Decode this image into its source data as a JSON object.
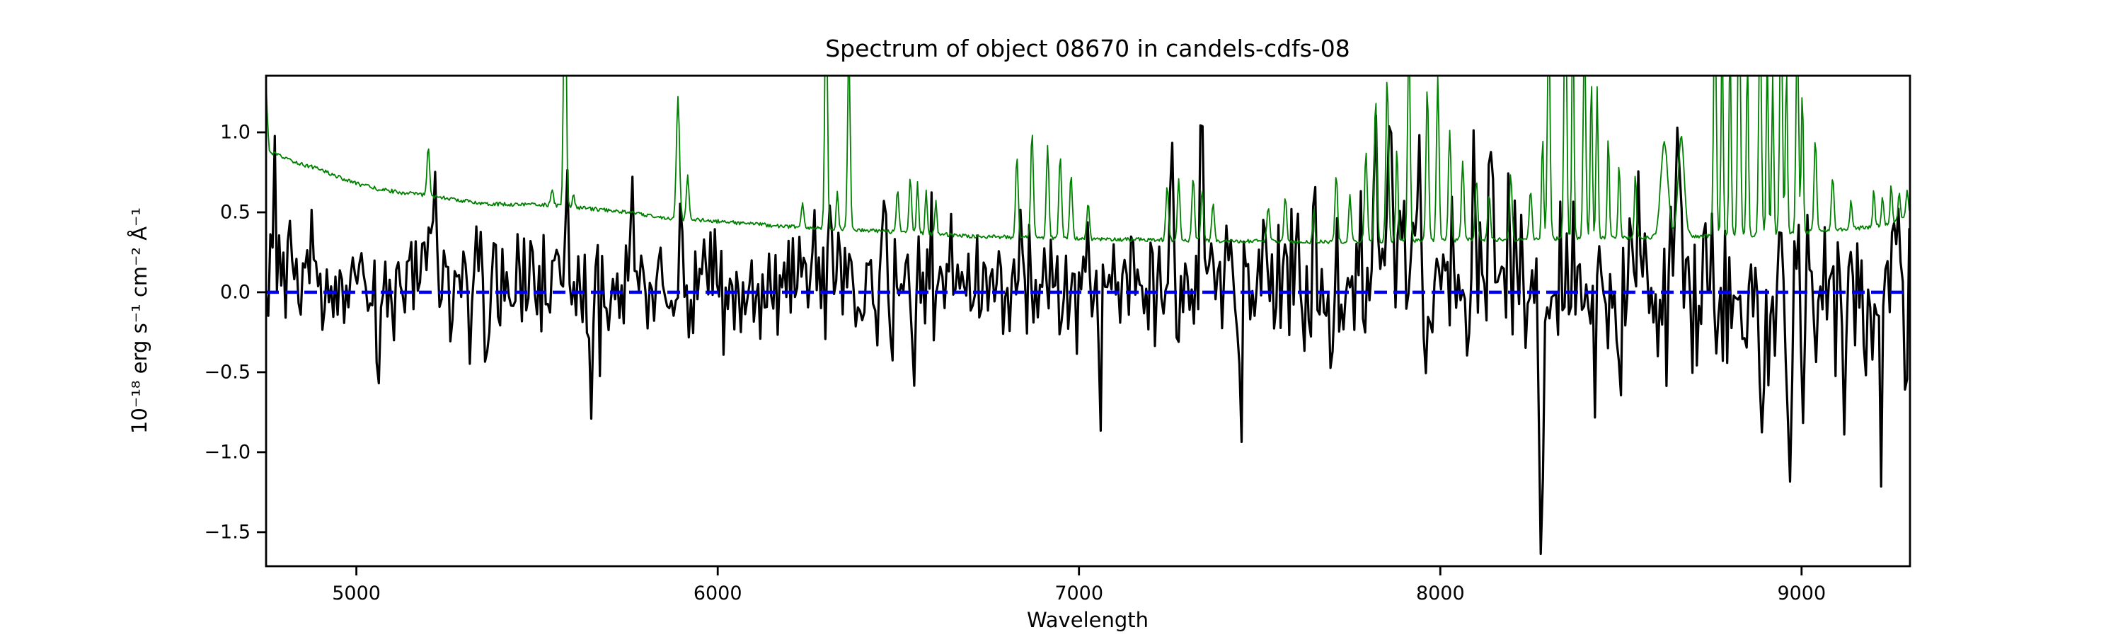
{
  "figure": {
    "title": "Spectrum of object 08670 in candels-cdfs-08",
    "xlabel": "Wavelength",
    "ylabel": "10⁻¹⁸ erg s⁻¹ cm⁻² Å⁻¹",
    "background": "#ffffff",
    "frame_color": "#000000"
  },
  "chart_data": {
    "type": "line",
    "title": "Spectrum of object 08670 in candels-cdfs-08",
    "xlabel": "Wavelength",
    "ylabel": "10^-18 erg s^-1 cm^-2 A^-1",
    "xlim": [
      4750,
      9300
    ],
    "ylim": [
      -1.713,
      1.354
    ],
    "x_ticks": [
      5000,
      6000,
      7000,
      8000,
      9000
    ],
    "x_tick_labels": [
      "5000",
      "6000",
      "7000",
      "8000",
      "9000"
    ],
    "y_ticks": [
      1.0,
      0.5,
      0.0,
      -0.5,
      -1.0,
      -1.5
    ],
    "y_tick_labels": [
      "1.0",
      "0.5",
      "0.0",
      "−0.5",
      "−1.0",
      "−1.5"
    ],
    "grid": false,
    "legend": null,
    "series": [
      {
        "name": "object-flux-spectrum",
        "color": "#000000",
        "linewidth": 3.2,
        "style": "solid",
        "description": "noisy black flux spectrum around zero",
        "sample_step": 6,
        "seed": 8670,
        "mean_level": [
          [
            4750,
            0.06
          ],
          [
            6000,
            0.05
          ],
          [
            7200,
            0.06
          ],
          [
            7800,
            0.1
          ],
          [
            8300,
            0.02
          ],
          [
            8800,
            -0.02
          ],
          [
            9300,
            0.02
          ]
        ],
        "sigma_envelope": [
          [
            4750,
            0.2
          ],
          [
            5200,
            0.19
          ],
          [
            6000,
            0.18
          ],
          [
            6800,
            0.18
          ],
          [
            7300,
            0.2
          ],
          [
            7700,
            0.24
          ],
          [
            8200,
            0.27
          ],
          [
            8600,
            0.29
          ],
          [
            9000,
            0.31
          ],
          [
            9300,
            0.33
          ]
        ],
        "features": [
          [
            4773,
            0.72,
            6
          ],
          [
            5215,
            0.8,
            7
          ],
          [
            5582,
            0.45,
            5
          ],
          [
            5764,
            0.55,
            6
          ],
          [
            5900,
            0.52,
            6
          ],
          [
            5960,
            0.5,
            5
          ],
          [
            6310,
            0.42,
            5
          ],
          [
            6460,
            0.5,
            5
          ],
          [
            6840,
            0.55,
            6
          ],
          [
            7258,
            0.85,
            6
          ],
          [
            7340,
            1.12,
            6
          ],
          [
            7600,
            0.6,
            5
          ],
          [
            7820,
            0.88,
            6
          ],
          [
            7862,
            0.92,
            6
          ],
          [
            7940,
            0.75,
            6
          ],
          [
            8090,
            0.8,
            6
          ],
          [
            8135,
            0.9,
            6
          ],
          [
            8660,
            1.0,
            7
          ],
          [
            8730,
            0.92,
            6
          ],
          [
            9032,
            0.8,
            6
          ],
          [
            5060,
            -0.7,
            6
          ],
          [
            5360,
            -0.55,
            5
          ],
          [
            5650,
            -0.78,
            6
          ],
          [
            6020,
            -0.55,
            5
          ],
          [
            6540,
            -0.6,
            5
          ],
          [
            7060,
            -0.65,
            6
          ],
          [
            7450,
            -0.7,
            6
          ],
          [
            7700,
            -0.6,
            5
          ],
          [
            8280,
            -1.75,
            8
          ],
          [
            8500,
            -0.85,
            5
          ],
          [
            8893,
            -1.22,
            6
          ],
          [
            8968,
            -1.28,
            6
          ],
          [
            9120,
            -0.85,
            5
          ],
          [
            9220,
            -0.95,
            6
          ]
        ]
      },
      {
        "name": "zero-flux-line",
        "color": "#0000ee",
        "linewidth": 4.5,
        "style": "dashed",
        "dash": [
          18,
          9
        ],
        "value": 0.0
      },
      {
        "name": "sky-noise-spectrum",
        "color": "#008000",
        "linewidth": 1.8,
        "style": "solid",
        "sample_step": 3,
        "jitter": 0.012,
        "continuum": [
          [
            4750,
            1.3
          ],
          [
            4758,
            0.88
          ],
          [
            4800,
            0.84
          ],
          [
            4850,
            0.8
          ],
          [
            4900,
            0.77
          ],
          [
            4950,
            0.72
          ],
          [
            5000,
            0.68
          ],
          [
            5060,
            0.645
          ],
          [
            5120,
            0.625
          ],
          [
            5180,
            0.61
          ],
          [
            5240,
            0.59
          ],
          [
            5300,
            0.57
          ],
          [
            5360,
            0.555
          ],
          [
            5420,
            0.55
          ],
          [
            5480,
            0.55
          ],
          [
            5540,
            0.545
          ],
          [
            5600,
            0.53
          ],
          [
            5660,
            0.52
          ],
          [
            5720,
            0.51
          ],
          [
            5780,
            0.49
          ],
          [
            5840,
            0.47
          ],
          [
            5900,
            0.455
          ],
          [
            5960,
            0.45
          ],
          [
            6020,
            0.44
          ],
          [
            6080,
            0.43
          ],
          [
            6140,
            0.42
          ],
          [
            6200,
            0.41
          ],
          [
            6260,
            0.4
          ],
          [
            6320,
            0.395
          ],
          [
            6380,
            0.39
          ],
          [
            6440,
            0.385
          ],
          [
            6500,
            0.375
          ],
          [
            6600,
            0.365
          ],
          [
            6700,
            0.35
          ],
          [
            6800,
            0.345
          ],
          [
            6900,
            0.34
          ],
          [
            7000,
            0.335
          ],
          [
            7100,
            0.33
          ],
          [
            7200,
            0.33
          ],
          [
            7300,
            0.325
          ],
          [
            7400,
            0.32
          ],
          [
            7500,
            0.32
          ],
          [
            7600,
            0.315
          ],
          [
            7700,
            0.315
          ],
          [
            7800,
            0.32
          ],
          [
            7900,
            0.32
          ],
          [
            8000,
            0.325
          ],
          [
            8100,
            0.33
          ],
          [
            8200,
            0.33
          ],
          [
            8300,
            0.335
          ],
          [
            8400,
            0.34
          ],
          [
            8500,
            0.34
          ],
          [
            8600,
            0.345
          ],
          [
            8700,
            0.35
          ],
          [
            8800,
            0.355
          ],
          [
            8900,
            0.36
          ],
          [
            9000,
            0.375
          ],
          [
            9100,
            0.39
          ],
          [
            9200,
            0.41
          ],
          [
            9260,
            0.44
          ],
          [
            9300,
            0.5
          ]
        ],
        "emission_lines": [
          [
            5199,
            0.92,
            5
          ],
          [
            5542,
            0.64,
            5
          ],
          [
            5577,
            2.3,
            5
          ],
          [
            5601,
            0.62,
            4
          ],
          [
            5890,
            1.22,
            6
          ],
          [
            5917,
            0.74,
            5
          ],
          [
            6235,
            0.55,
            5
          ],
          [
            6300,
            2.0,
            5
          ],
          [
            6331,
            0.64,
            4
          ],
          [
            6363,
            1.52,
            5
          ],
          [
            6498,
            0.64,
            5
          ],
          [
            6533,
            0.72,
            5
          ],
          [
            6553,
            0.68,
            4
          ],
          [
            6577,
            0.64,
            4
          ],
          [
            6604,
            0.58,
            4
          ],
          [
            6828,
            0.84,
            5
          ],
          [
            6870,
            1.02,
            5
          ],
          [
            6913,
            0.92,
            5
          ],
          [
            6948,
            0.86,
            5
          ],
          [
            6978,
            0.74,
            5
          ],
          [
            7025,
            0.56,
            5
          ],
          [
            7244,
            0.66,
            5
          ],
          [
            7276,
            0.7,
            5
          ],
          [
            7316,
            0.72,
            5
          ],
          [
            7341,
            0.64,
            5
          ],
          [
            7371,
            0.56,
            5
          ],
          [
            7524,
            0.54,
            5
          ],
          [
            7571,
            0.6,
            5
          ],
          [
            7650,
            0.52,
            4
          ],
          [
            7712,
            0.74,
            5
          ],
          [
            7750,
            0.6,
            5
          ],
          [
            7794,
            0.88,
            5
          ],
          [
            7821,
            1.22,
            5
          ],
          [
            7853,
            1.34,
            5
          ],
          [
            7880,
            0.92,
            4
          ],
          [
            7913,
            1.6,
            5
          ],
          [
            7964,
            1.28,
            5
          ],
          [
            7993,
            1.34,
            5
          ],
          [
            8026,
            1.02,
            5
          ],
          [
            8062,
            0.82,
            5
          ],
          [
            8100,
            0.7,
            5
          ],
          [
            8135,
            0.62,
            5
          ],
          [
            8195,
            0.74,
            5
          ],
          [
            8250,
            0.64,
            5
          ],
          [
            8283,
            0.98,
            4
          ],
          [
            8300,
            1.75,
            5
          ],
          [
            8346,
            2.1,
            5
          ],
          [
            8367,
            1.85,
            4
          ],
          [
            8399,
            1.65,
            5
          ],
          [
            8418,
            1.35,
            4
          ],
          [
            8434,
            1.28,
            4
          ],
          [
            8465,
            0.98,
            4
          ],
          [
            8495,
            0.82,
            4
          ],
          [
            8540,
            0.74,
            4
          ],
          [
            8620,
            0.94,
            14
          ],
          [
            8667,
            0.97,
            12
          ],
          [
            8760,
            1.95,
            5
          ],
          [
            8780,
            1.65,
            4
          ],
          [
            8802,
            1.58,
            4
          ],
          [
            8827,
            2.05,
            5
          ],
          [
            8850,
            1.48,
            4
          ],
          [
            8885,
            1.8,
            5
          ],
          [
            8905,
            1.52,
            4
          ],
          [
            8920,
            1.35,
            4
          ],
          [
            8943,
            1.9,
            5
          ],
          [
            8958,
            1.42,
            4
          ],
          [
            8988,
            1.7,
            5
          ],
          [
            9002,
            1.28,
            4
          ],
          [
            9038,
            0.96,
            5
          ],
          [
            9086,
            0.72,
            5
          ],
          [
            9137,
            0.58,
            4
          ],
          [
            9200,
            0.64,
            4
          ],
          [
            9224,
            0.6,
            4
          ],
          [
            9248,
            0.67,
            4
          ],
          [
            9270,
            0.62,
            4
          ],
          [
            9292,
            0.64,
            4
          ]
        ]
      }
    ]
  }
}
